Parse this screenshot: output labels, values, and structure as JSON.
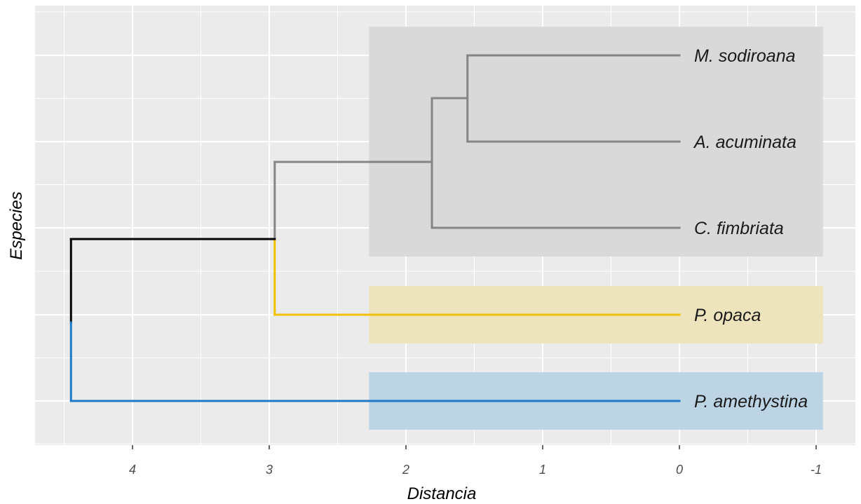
{
  "chart_data": {
    "type": "dendrogram",
    "xlabel": "Distancia",
    "ylabel": "Especies",
    "xlim": [
      4.55,
      -1.05
    ],
    "x_reversed": true,
    "x_ticks": [
      4,
      3,
      2,
      1,
      0,
      -1
    ],
    "grid": true,
    "leaves": [
      {
        "label": "M. sodiroana",
        "group": "gray"
      },
      {
        "label": "A. acuminata",
        "group": "gray"
      },
      {
        "label": "C. fimbriata",
        "group": "gray"
      },
      {
        "label": "P. opaca",
        "group": "yellow"
      },
      {
        "label": "P. amethystina",
        "group": "blue"
      }
    ],
    "merges": [
      {
        "left": "M. sodiroana",
        "right": "A. acuminata",
        "height": 1.55
      },
      {
        "left": "M. sodiroana + A. acuminata",
        "right": "C. fimbriata",
        "height": 1.81
      },
      {
        "left": "M. sodiroana + A. acuminata + C. fimbriata",
        "right": "P. opaca",
        "height": 2.96
      },
      {
        "left": "M. sodiroana + A. acuminata + C. fimbriata + P. opaca",
        "right": "P. amethystina",
        "height": 4.45
      }
    ],
    "group_boxes": [
      {
        "group": "gray",
        "x_range": [
          2.27,
          -1.05
        ],
        "fill": "#d9d9d9"
      },
      {
        "group": "yellow",
        "x_range": [
          2.27,
          -1.05
        ],
        "fill": "#ede3bd"
      },
      {
        "group": "blue",
        "x_range": [
          2.27,
          -1.05
        ],
        "fill": "#bdd4e5"
      }
    ],
    "colors": {
      "gray": "#858585",
      "yellow": "#f0c100",
      "blue": "#1f79c6",
      "root": "#000000",
      "panel": "#ebebeb",
      "grid": "#ffffff"
    }
  }
}
